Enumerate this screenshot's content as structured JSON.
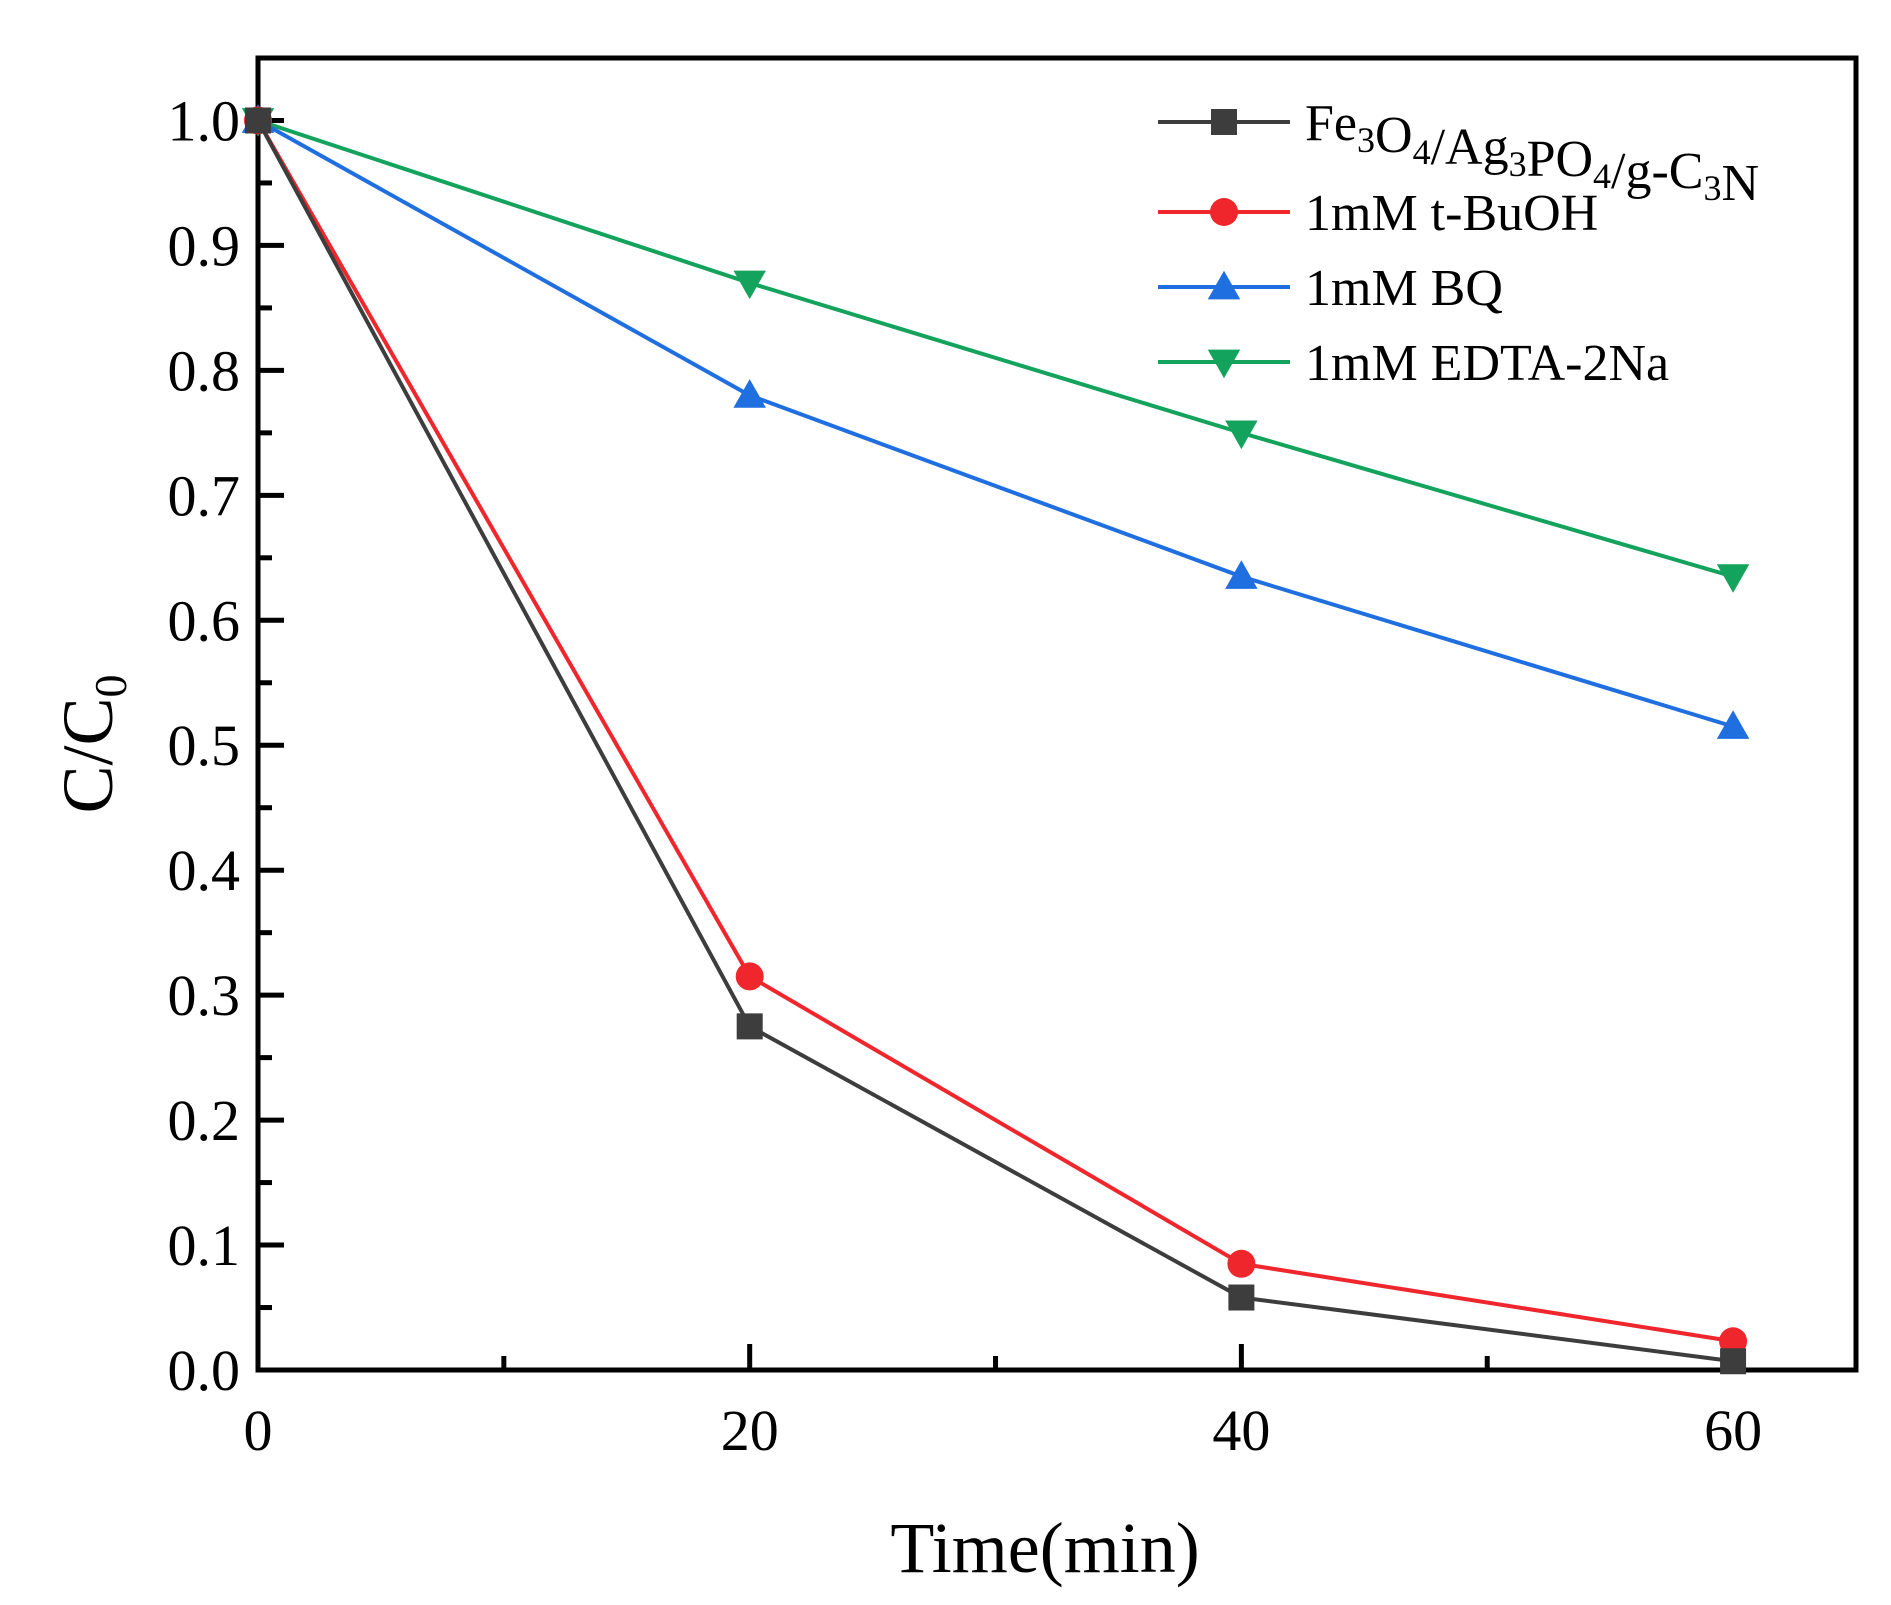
{
  "chart_data": {
    "type": "line",
    "title": "",
    "xlabel": "Time(min)",
    "ylabel": {
      "main": "C/C",
      "sub": "0"
    },
    "xlim": [
      0,
      65
    ],
    "ylim": [
      0.0,
      1.05
    ],
    "x": [
      0,
      20,
      40,
      60
    ],
    "x_ticks": [
      0,
      20,
      40,
      60
    ],
    "x_ticks_labels": [
      "0",
      "20",
      "40",
      "60"
    ],
    "y_ticks": [
      0.0,
      0.1,
      0.2,
      0.3,
      0.4,
      0.5,
      0.6,
      0.7,
      0.8,
      0.9,
      1.0
    ],
    "y_ticks_labels": [
      "0.0",
      "0.1",
      "0.2",
      "0.3",
      "0.4",
      "0.5",
      "0.6",
      "0.7",
      "0.8",
      "0.9",
      "1.0"
    ],
    "grid": false,
    "legend_position": "top-right",
    "series": [
      {
        "id": "fe3o4",
        "name": "Fe3O4/Ag3PO4/g-C3N",
        "legend_parts": [
          [
            "Fe",
            ""
          ],
          [
            "3",
            "sub"
          ],
          [
            "O",
            ""
          ],
          [
            "4",
            "sub"
          ],
          [
            "/Ag",
            ""
          ],
          [
            "3",
            "sub"
          ],
          [
            "PO",
            ""
          ],
          [
            "4",
            "sub"
          ],
          [
            "/g-C",
            ""
          ],
          [
            "3",
            "sub"
          ],
          [
            "N",
            ""
          ]
        ],
        "color": "#3d3d3d",
        "marker": "square",
        "values": [
          1.0,
          0.275,
          0.058,
          0.007
        ]
      },
      {
        "id": "tbuoh",
        "name": "1mM t-BuOH",
        "legend_parts": [
          [
            "1mM t-BuOH",
            ""
          ]
        ],
        "color": "#f0262d",
        "marker": "circle",
        "values": [
          1.0,
          0.315,
          0.085,
          0.023
        ]
      },
      {
        "id": "bq",
        "name": "1mM BQ",
        "legend_parts": [
          [
            "1mM BQ",
            ""
          ]
        ],
        "color": "#1f6fe0",
        "marker": "triangle-up",
        "values": [
          1.0,
          0.78,
          0.635,
          0.515
        ]
      },
      {
        "id": "edta",
        "name": "1mM EDTA-2Na",
        "legend_parts": [
          [
            "1mM EDTA-2Na",
            ""
          ]
        ],
        "color": "#14a35c",
        "marker": "triangle-down",
        "values": [
          1.0,
          0.87,
          0.75,
          0.635
        ]
      }
    ]
  }
}
